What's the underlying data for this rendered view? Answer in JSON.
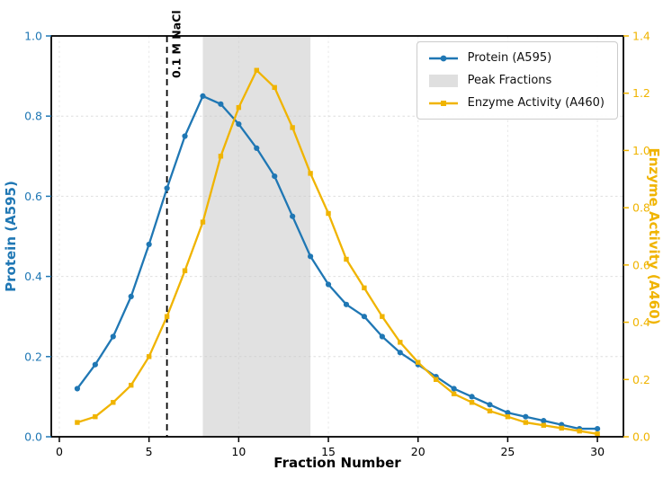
{
  "chart_data": {
    "type": "line",
    "title": "",
    "xlabel": "Fraction Number",
    "ylabel_left": "Protein (A595)",
    "ylabel_right": "Enzyme Activity (A460)",
    "xlim": [
      -0.45,
      31.45
    ],
    "ylim_left": [
      0.0,
      1.0
    ],
    "ylim_right": [
      0.0,
      1.4
    ],
    "x_ticks": [
      0,
      5,
      10,
      15,
      20,
      25,
      30
    ],
    "y_ticks_left": [
      0.0,
      0.2,
      0.4,
      0.6,
      0.8,
      1.0
    ],
    "y_ticks_right": [
      0.0,
      0.2,
      0.4,
      0.6,
      0.8,
      1.0,
      1.2,
      1.4
    ],
    "grid": true,
    "legend_position": "upper right",
    "x": [
      1,
      2,
      3,
      4,
      5,
      6,
      7,
      8,
      9,
      10,
      11,
      12,
      13,
      14,
      15,
      16,
      17,
      18,
      19,
      20,
      21,
      22,
      23,
      24,
      25,
      26,
      27,
      28,
      29,
      30
    ],
    "series": [
      {
        "name": "Protein (A595)",
        "axis": "left",
        "color": "#1f77b4",
        "marker": "circle",
        "values": [
          0.12,
          0.18,
          0.25,
          0.35,
          0.48,
          0.62,
          0.75,
          0.85,
          0.83,
          0.78,
          0.72,
          0.65,
          0.55,
          0.45,
          0.38,
          0.33,
          0.3,
          0.25,
          0.21,
          0.18,
          0.15,
          0.12,
          0.1,
          0.08,
          0.06,
          0.05,
          0.04,
          0.03,
          0.02,
          0.02
        ]
      },
      {
        "name": "Enzyme Activity (A460)",
        "axis": "right",
        "color": "#f0b400",
        "marker": "square",
        "values": [
          0.05,
          0.07,
          0.12,
          0.18,
          0.28,
          0.42,
          0.58,
          0.75,
          0.98,
          1.15,
          1.28,
          1.22,
          1.08,
          0.92,
          0.78,
          0.62,
          0.52,
          0.42,
          0.33,
          0.26,
          0.2,
          0.15,
          0.12,
          0.09,
          0.07,
          0.05,
          0.04,
          0.03,
          0.02,
          0.01
        ]
      }
    ],
    "band": {
      "label": "Peak Fractions",
      "x_start": 8,
      "x_end": 14,
      "color": "#d9d9d9"
    },
    "vline": {
      "x": 6,
      "label": "0.1 M NaCl",
      "color": "#000000"
    },
    "colors": {
      "protein": "#1f77b4",
      "enzyme": "#f0b400",
      "band": "#d9d9d9",
      "spine": "#000000",
      "grid": "#c8c8c8"
    }
  }
}
